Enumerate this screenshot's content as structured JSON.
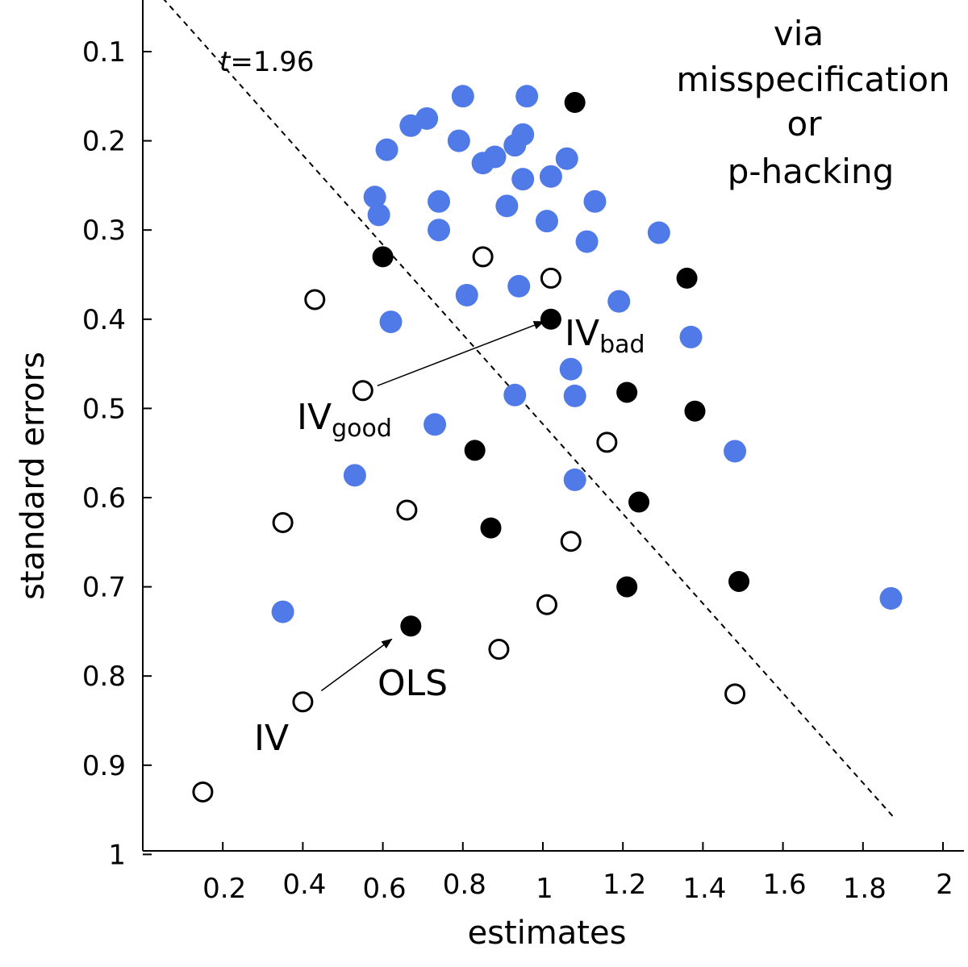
{
  "chart_data": {
    "type": "scatter",
    "xlabel": "estimates",
    "ylabel": "standard errors",
    "xlim": [
      0,
      2.05
    ],
    "ylim": [
      0.05,
      1.0
    ],
    "y_inverted": true,
    "xticks": [
      0.2,
      0.4,
      0.6,
      0.8,
      1,
      1.2,
      1.4,
      1.6,
      1.8,
      2
    ],
    "xtick_labels": [
      "0.2",
      "0.4",
      "0.6",
      "0.8",
      "1",
      "1.2",
      "1.4",
      "1.6",
      "1.8",
      "2"
    ],
    "yticks": [
      0.1,
      0.2,
      0.3,
      0.4,
      0.5,
      0.6,
      0.7,
      0.8,
      0.9,
      1
    ],
    "ytick_labels": [
      "0.1",
      "0.2",
      "0.3",
      "0.4",
      "0.5",
      "0.6",
      "0.7",
      "0.8",
      "0.9",
      "1"
    ],
    "colors": {
      "blue": "#4f7ae8",
      "black": "#000000"
    },
    "series": [
      {
        "style": "filled-blue",
        "points": [
          [
            0.8,
            0.15
          ],
          [
            0.96,
            0.15
          ],
          [
            0.71,
            0.175
          ],
          [
            0.67,
            0.183
          ],
          [
            0.79,
            0.2
          ],
          [
            0.61,
            0.21
          ],
          [
            0.88,
            0.218
          ],
          [
            0.85,
            0.225
          ],
          [
            0.95,
            0.193
          ],
          [
            0.93,
            0.205
          ],
          [
            1.06,
            0.22
          ],
          [
            0.95,
            0.243
          ],
          [
            1.02,
            0.24
          ],
          [
            0.58,
            0.263
          ],
          [
            0.74,
            0.268
          ],
          [
            1.13,
            0.268
          ],
          [
            0.91,
            0.273
          ],
          [
            0.59,
            0.283
          ],
          [
            1.01,
            0.29
          ],
          [
            0.74,
            0.3
          ],
          [
            1.29,
            0.303
          ],
          [
            1.11,
            0.313
          ],
          [
            0.94,
            0.363
          ],
          [
            0.81,
            0.373
          ],
          [
            1.19,
            0.38
          ],
          [
            0.62,
            0.403
          ],
          [
            1.37,
            0.42
          ],
          [
            1.07,
            0.456
          ],
          [
            0.93,
            0.485
          ],
          [
            1.08,
            0.486
          ],
          [
            0.73,
            0.518
          ],
          [
            1.48,
            0.548
          ],
          [
            0.53,
            0.575
          ],
          [
            1.08,
            0.58
          ],
          [
            1.87,
            0.713
          ],
          [
            0.35,
            0.728
          ]
        ]
      },
      {
        "style": "filled-black",
        "points": [
          [
            1.08,
            0.157
          ],
          [
            0.6,
            0.33
          ],
          [
            1.36,
            0.354
          ],
          [
            1.02,
            0.4
          ],
          [
            1.21,
            0.482
          ],
          [
            1.38,
            0.503
          ],
          [
            0.83,
            0.547
          ],
          [
            1.24,
            0.605
          ],
          [
            0.87,
            0.634
          ],
          [
            1.49,
            0.694
          ],
          [
            1.21,
            0.7
          ],
          [
            0.67,
            0.744
          ]
        ]
      },
      {
        "style": "open-circle",
        "points": [
          [
            0.85,
            0.33
          ],
          [
            1.02,
            0.354
          ],
          [
            0.43,
            0.378
          ],
          [
            0.55,
            0.48
          ],
          [
            1.16,
            0.538
          ],
          [
            0.66,
            0.614
          ],
          [
            0.35,
            0.628
          ],
          [
            1.07,
            0.649
          ],
          [
            1.01,
            0.72
          ],
          [
            0.89,
            0.77
          ],
          [
            0.4,
            0.829
          ],
          [
            1.48,
            0.82
          ],
          [
            0.15,
            0.93
          ]
        ]
      }
    ],
    "reference_line": {
      "label_italic": "t",
      "label_rest": "=1.96",
      "from": [
        0.05,
        0.04
      ],
      "to": [
        1.88,
        0.96
      ]
    },
    "annotations": {
      "top_right": [
        "via",
        "misspecification",
        "or",
        "p-hacking"
      ],
      "iv_bad": {
        "main": "IV",
        "sub": "bad",
        "at": [
          1.06,
          0.413
        ]
      },
      "iv_good": {
        "main": "IV",
        "sub": "good",
        "at": [
          0.39,
          0.51
        ]
      },
      "iv": {
        "text": "IV",
        "at": [
          0.28,
          0.885
        ]
      },
      "ols": {
        "text": "OLS",
        "at": [
          0.6,
          0.817
        ]
      },
      "arrows": [
        {
          "from": [
            0.55,
            0.48
          ],
          "to": [
            1.01,
            0.4
          ]
        },
        {
          "from": [
            0.41,
            0.822
          ],
          "to": [
            0.63,
            0.756
          ]
        }
      ]
    }
  }
}
